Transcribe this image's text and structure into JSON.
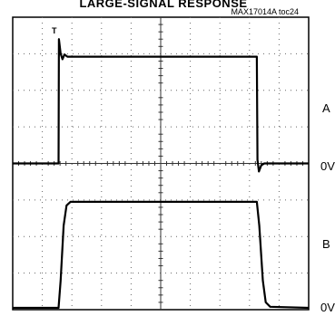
{
  "title": "LARGE-SIGNAL RESPONSE",
  "doc_id": "MAX17014A toc24",
  "chart_data": {
    "type": "line",
    "title": "LARGE-SIGNAL RESPONSE",
    "xlabel": "",
    "ylabel": "",
    "grid": true,
    "grid_divisions": {
      "x": 10,
      "y": 8
    },
    "trigger_marker": "T",
    "channel_labels": [
      {
        "name": "A",
        "zero_label": "0V"
      },
      {
        "name": "B",
        "zero_label": "0V"
      }
    ],
    "x_unit": "div",
    "y_unit": "div",
    "xlim": [
      0,
      10
    ],
    "ylim": [
      0,
      8
    ],
    "series": [
      {
        "name": "A",
        "points": [
          [
            0,
            4.0
          ],
          [
            1.55,
            4.0
          ],
          [
            1.56,
            7.4
          ],
          [
            1.62,
            7.0
          ],
          [
            1.68,
            6.85
          ],
          [
            1.75,
            6.98
          ],
          [
            1.85,
            6.92
          ],
          [
            8.25,
            6.92
          ],
          [
            8.27,
            4.1
          ],
          [
            8.32,
            3.78
          ],
          [
            8.4,
            3.95
          ],
          [
            8.5,
            4.0
          ],
          [
            10,
            4.0
          ]
        ]
      },
      {
        "name": "B",
        "points": [
          [
            0,
            0.05
          ],
          [
            1.55,
            0.05
          ],
          [
            1.62,
            0.8
          ],
          [
            1.72,
            2.3
          ],
          [
            1.82,
            2.85
          ],
          [
            1.95,
            2.95
          ],
          [
            8.25,
            2.95
          ],
          [
            8.33,
            2.3
          ],
          [
            8.45,
            0.8
          ],
          [
            8.55,
            0.2
          ],
          [
            8.7,
            0.08
          ],
          [
            10,
            0.05
          ]
        ]
      }
    ]
  }
}
